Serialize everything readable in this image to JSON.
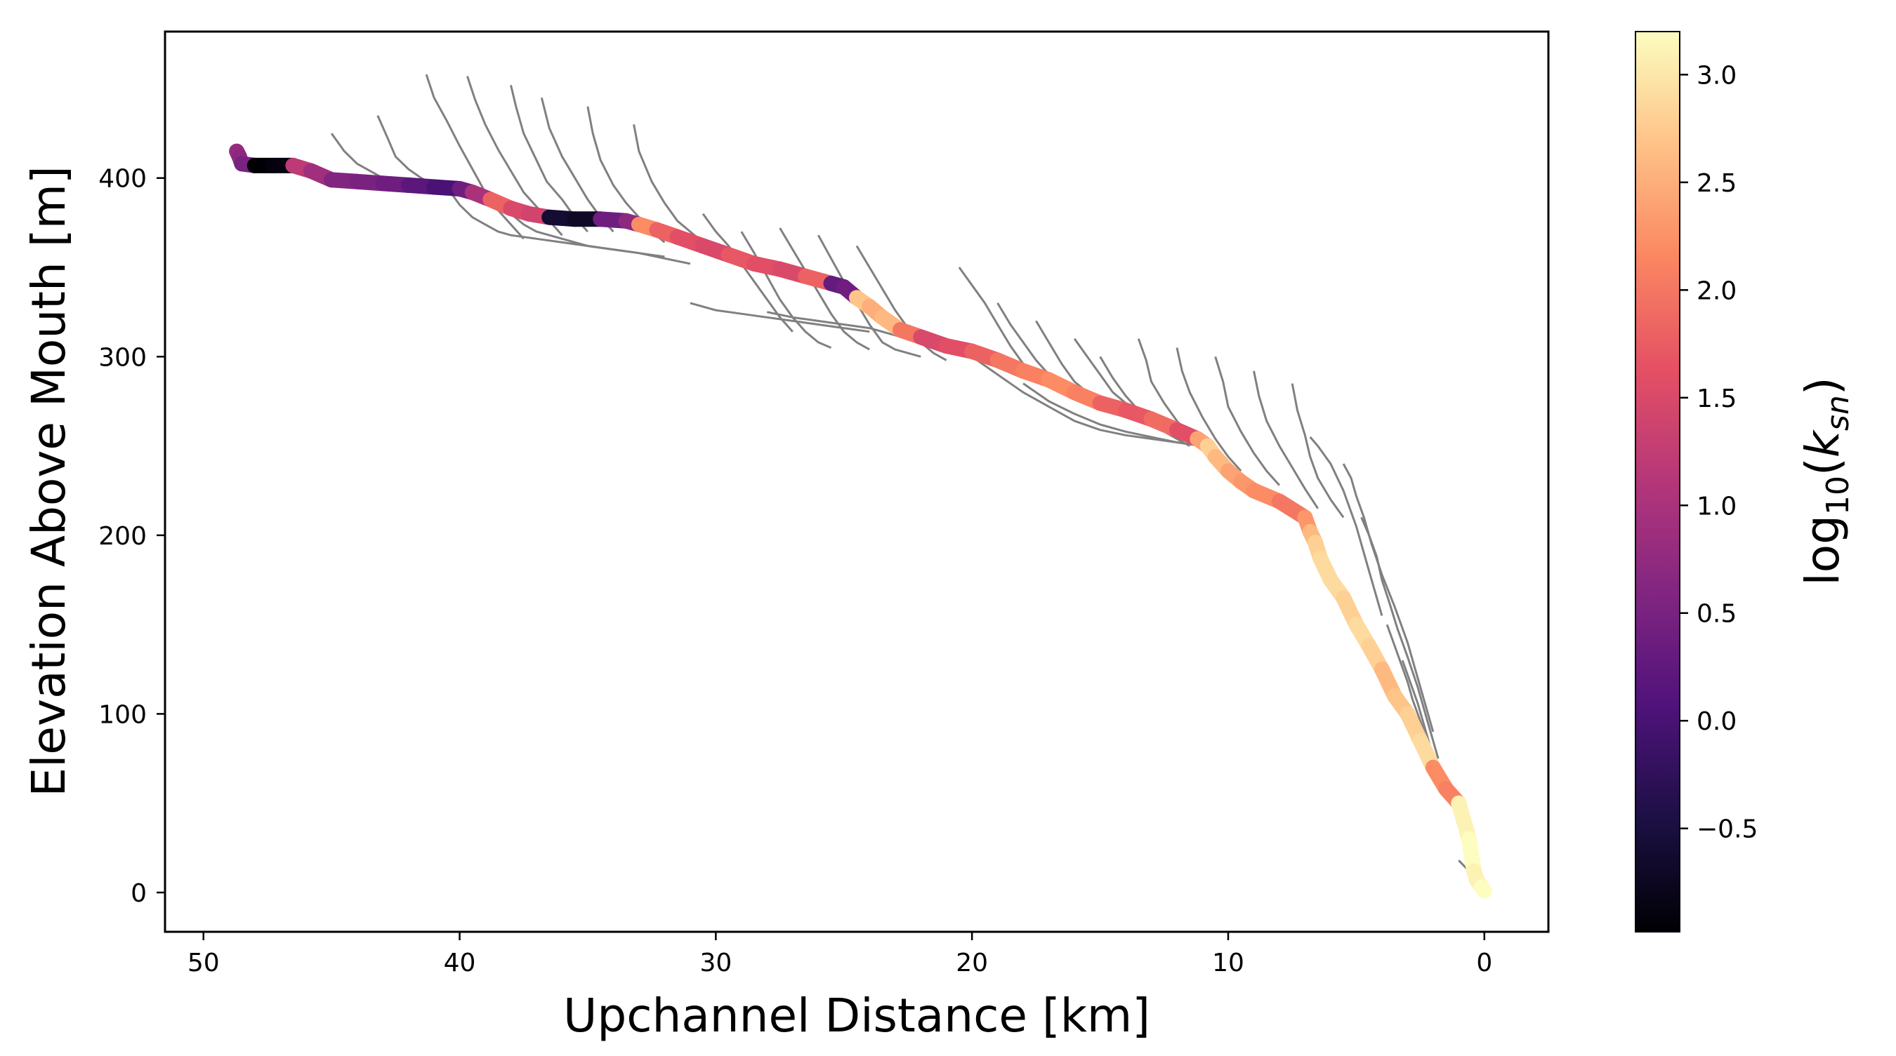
{
  "chart_data": {
    "type": "line",
    "xlabel": "Upchannel Distance [km]",
    "ylabel": "Elevation Above Mouth [m]",
    "x_axis_inverted": true,
    "xlim": [
      51.5,
      -2.5
    ],
    "ylim": [
      -22,
      482
    ],
    "xticks": [
      50,
      40,
      30,
      20,
      10,
      0
    ],
    "yticks": [
      0,
      100,
      200,
      300,
      400
    ],
    "xtick_labels": [
      "50",
      "40",
      "30",
      "20",
      "10",
      "0"
    ],
    "ytick_labels": [
      "0",
      "100",
      "200",
      "300",
      "400"
    ],
    "grid": false,
    "colorbar": {
      "label": "log10(ksn)",
      "label_base": "log",
      "label_sub1": "10",
      "label_var": "k",
      "label_sub2": "sn",
      "colormap": "magma",
      "range": [
        -0.98,
        3.2
      ],
      "ticks": [
        -0.5,
        0.0,
        0.5,
        1.0,
        1.5,
        2.0,
        2.5,
        3.0
      ],
      "tick_labels": [
        "−0.5",
        "0.0",
        "0.5",
        "1.0",
        "1.5",
        "2.0",
        "2.5",
        "3.0"
      ]
    },
    "colors": {
      "tributaries": "#808080",
      "axes": "#000000"
    },
    "series": [
      {
        "role": "main-stem",
        "x": [
          48.7,
          48.6,
          48.5,
          48.0,
          47.3,
          46.5,
          45.8,
          45.0,
          44.0,
          43.0,
          42.0,
          41.0,
          40.0,
          39.5,
          38.8,
          38.0,
          37.3,
          36.5,
          35.5,
          34.5,
          33.5,
          33.0,
          32.3,
          31.5,
          30.5,
          29.5,
          28.5,
          27.5,
          26.5,
          25.5,
          25.0,
          24.5,
          24.0,
          23.5,
          22.8,
          22.0,
          21.0,
          20.0,
          19.0,
          18.0,
          17.0,
          16.0,
          15.0,
          14.0,
          13.0,
          12.0,
          11.2,
          10.8,
          10.5,
          10.0,
          9.5,
          9.0,
          8.0,
          7.0,
          6.8,
          6.6,
          6.4,
          6.0,
          5.5,
          5.0,
          4.5,
          4.0,
          3.5,
          3.0,
          2.5,
          2.0,
          1.5,
          1.0,
          0.8,
          0.6,
          0.5,
          0.4,
          0.3,
          0.1,
          0.0
        ],
        "y": [
          415,
          412,
          408,
          407,
          407,
          407,
          404,
          399,
          398,
          397,
          396,
          395,
          394,
          392,
          388,
          383,
          380,
          378,
          377,
          377,
          376,
          374,
          371,
          367,
          362,
          357,
          352,
          349,
          345,
          341,
          339,
          333,
          328,
          322,
          315,
          311,
          306,
          303,
          298,
          292,
          287,
          280,
          274,
          270,
          265,
          259,
          254,
          250,
          244,
          236,
          230,
          225,
          219,
          210,
          202,
          196,
          187,
          175,
          165,
          150,
          138,
          125,
          110,
          100,
          85,
          70,
          58,
          50,
          40,
          30,
          20,
          12,
          7,
          3,
          1
        ],
        "ksn": [
          0.8,
          0.7,
          0.5,
          -1.0,
          -0.9,
          1.2,
          0.9,
          0.6,
          0.5,
          0.4,
          0.2,
          0.0,
          0.4,
          1.0,
          1.8,
          1.5,
          1.4,
          -0.6,
          -0.7,
          0.4,
          0.7,
          2.2,
          1.8,
          1.6,
          1.5,
          1.7,
          1.6,
          1.5,
          1.8,
          0.3,
          0.4,
          2.7,
          2.5,
          2.6,
          2.0,
          1.5,
          1.6,
          1.8,
          2.0,
          2.1,
          2.2,
          2.1,
          1.8,
          1.7,
          1.9,
          1.6,
          2.4,
          2.8,
          2.6,
          2.4,
          2.3,
          2.2,
          2.0,
          2.3,
          2.6,
          2.8,
          2.9,
          2.9,
          2.8,
          2.9,
          2.8,
          2.6,
          2.7,
          2.8,
          2.9,
          2.2,
          2.1,
          3.1,
          3.1,
          3.2,
          3.2,
          3.1,
          3.1,
          3.2,
          3.2
        ]
      },
      {
        "role": "tributary",
        "x": [
          41.3,
          41.0,
          40.5,
          40.0,
          39.5,
          39.0,
          38.5,
          38.0,
          37.5
        ],
        "y": [
          458,
          445,
          432,
          418,
          405,
          392,
          382,
          374,
          366
        ]
      },
      {
        "role": "tributary",
        "x": [
          39.7,
          39.4,
          39.0,
          38.5,
          38.0,
          37.5,
          37.0,
          36.5,
          36.0
        ],
        "y": [
          457,
          444,
          430,
          416,
          404,
          392,
          384,
          376,
          368
        ]
      },
      {
        "role": "tributary",
        "x": [
          38.0,
          37.8,
          37.5,
          37.0,
          36.6,
          36.0,
          35.5,
          35.0
        ],
        "y": [
          452,
          440,
          425,
          410,
          398,
          388,
          378,
          370
        ]
      },
      {
        "role": "tributary",
        "x": [
          36.8,
          36.5,
          36.0,
          35.5,
          35.0,
          34.5,
          34.0
        ],
        "y": [
          445,
          428,
          412,
          400,
          388,
          378,
          370
        ]
      },
      {
        "role": "tributary",
        "x": [
          35.0,
          34.8,
          34.5,
          34.0,
          33.5,
          33.0,
          32.5,
          32.0
        ],
        "y": [
          440,
          425,
          410,
          396,
          386,
          378,
          370,
          364
        ]
      },
      {
        "role": "tributary",
        "x": [
          33.2,
          33.0,
          32.5,
          32.0,
          31.5,
          31.0,
          30.5,
          30.0
        ],
        "y": [
          430,
          415,
          398,
          386,
          376,
          370,
          364,
          358
        ]
      },
      {
        "role": "tributary",
        "x": [
          43.2,
          42.8,
          42.5,
          42.0,
          41.5,
          41.0,
          40.5,
          40.0
        ],
        "y": [
          435,
          422,
          412,
          405,
          400,
          396,
          392,
          390
        ]
      },
      {
        "role": "tributary",
        "x": [
          45.0,
          44.5,
          44.0,
          43.5,
          43.0,
          42.5,
          42.0
        ],
        "y": [
          425,
          415,
          408,
          404,
          400,
          398,
          396
        ]
      },
      {
        "role": "tributary",
        "x": [
          40.5,
          40.0,
          39.5,
          39.0,
          38.5,
          38.0,
          37.0,
          36.0,
          35.0,
          34.0,
          33.0,
          32.0
        ],
        "y": [
          395,
          385,
          378,
          374,
          370,
          368,
          366,
          364,
          362,
          360,
          358,
          356
        ]
      },
      {
        "role": "tributary",
        "x": [
          38.5,
          38.0,
          37.5,
          37.0,
          36.0,
          35.0,
          34.0,
          33.0,
          32.0,
          31.0
        ],
        "y": [
          390,
          380,
          374,
          370,
          366,
          362,
          360,
          358,
          355,
          352
        ]
      },
      {
        "role": "tributary",
        "x": [
          30.5,
          30.0,
          29.5,
          29.0,
          28.5,
          28.0,
          27.5,
          27.0
        ],
        "y": [
          380,
          370,
          362,
          352,
          342,
          332,
          322,
          314
        ]
      },
      {
        "role": "tributary",
        "x": [
          29.0,
          28.5,
          28.0,
          27.5,
          27.0,
          26.5,
          26.0,
          25.5
        ],
        "y": [
          370,
          358,
          345,
          332,
          322,
          314,
          308,
          305
        ]
      },
      {
        "role": "tributary",
        "x": [
          27.5,
          27.0,
          26.5,
          26.0,
          25.5,
          25.0,
          24.5,
          24.0
        ],
        "y": [
          372,
          360,
          348,
          336,
          324,
          314,
          308,
          304
        ]
      },
      {
        "role": "tributary",
        "x": [
          26.0,
          25.5,
          25.0,
          24.5,
          24.0,
          23.5,
          23.0,
          22.0
        ],
        "y": [
          368,
          355,
          342,
          330,
          318,
          308,
          304,
          300
        ]
      },
      {
        "role": "tributary",
        "x": [
          24.5,
          24.0,
          23.5,
          23.0,
          22.5,
          22.0,
          21.5,
          21.0
        ],
        "y": [
          362,
          350,
          338,
          326,
          316,
          308,
          302,
          298
        ]
      },
      {
        "role": "tributary",
        "x": [
          31.0,
          30.0,
          29.0,
          28.0,
          27.0,
          26.0,
          25.0,
          24.0
        ],
        "y": [
          330,
          326,
          324,
          322,
          320,
          318,
          316,
          314
        ]
      },
      {
        "role": "tributary",
        "x": [
          28.0,
          27.0,
          26.0,
          25.0,
          24.0,
          23.0,
          22.0,
          21.0
        ],
        "y": [
          325,
          322,
          320,
          318,
          316,
          312,
          308,
          305
        ]
      },
      {
        "role": "tributary",
        "x": [
          20.5,
          20.0,
          19.5,
          19.0,
          18.5,
          18.0,
          17.5,
          17.0,
          16.5
        ],
        "y": [
          350,
          340,
          330,
          318,
          306,
          296,
          290,
          286,
          282
        ]
      },
      {
        "role": "tributary",
        "x": [
          19.0,
          18.5,
          18.0,
          17.5,
          17.0,
          16.5,
          16.0
        ],
        "y": [
          330,
          318,
          308,
          298,
          290,
          284,
          280
        ]
      },
      {
        "role": "tributary",
        "x": [
          17.5,
          17.0,
          16.5,
          16.0,
          15.5,
          15.0
        ],
        "y": [
          320,
          308,
          296,
          286,
          280,
          276
        ]
      },
      {
        "role": "tributary",
        "x": [
          16.0,
          15.5,
          15.0,
          14.5,
          14.0,
          13.5
        ],
        "y": [
          310,
          300,
          290,
          280,
          274,
          270
        ]
      },
      {
        "role": "tributary",
        "x": [
          20.0,
          19.0,
          18.0,
          17.0,
          16.0,
          15.0,
          14.0,
          13.0,
          12.0,
          11.0,
          10.5
        ],
        "y": [
          300,
          290,
          280,
          272,
          264,
          259,
          256,
          254,
          252,
          250,
          248
        ]
      },
      {
        "role": "tributary",
        "x": [
          18.0,
          17.0,
          16.0,
          15.0,
          14.0,
          13.0,
          12.0,
          11.0
        ],
        "y": [
          285,
          275,
          268,
          262,
          258,
          255,
          252,
          250
        ]
      },
      {
        "role": "tributary",
        "x": [
          15.0,
          14.5,
          14.0,
          13.5,
          13.0,
          12.5,
          12.0,
          11.5
        ],
        "y": [
          300,
          288,
          278,
          270,
          264,
          258,
          254,
          250
        ]
      },
      {
        "role": "tributary",
        "x": [
          13.5,
          13.2,
          13.0,
          12.5,
          12.0,
          11.5,
          11.0
        ],
        "y": [
          310,
          298,
          286,
          274,
          264,
          256,
          250
        ]
      },
      {
        "role": "tributary",
        "x": [
          12.0,
          11.8,
          11.5,
          11.0,
          10.5,
          10.0,
          9.5
        ],
        "y": [
          305,
          292,
          280,
          266,
          254,
          244,
          236
        ]
      },
      {
        "role": "tributary",
        "x": [
          10.5,
          10.2,
          10.0,
          9.5,
          9.0,
          8.5,
          8.0
        ],
        "y": [
          300,
          286,
          272,
          258,
          246,
          236,
          228
        ]
      },
      {
        "role": "tributary",
        "x": [
          9.0,
          8.8,
          8.5,
          8.0,
          7.5,
          7.0,
          6.5
        ],
        "y": [
          292,
          278,
          264,
          250,
          238,
          226,
          215
        ]
      },
      {
        "role": "tributary",
        "x": [
          7.5,
          7.3,
          7.0,
          6.8,
          6.5,
          6.0,
          5.5
        ],
        "y": [
          285,
          270,
          256,
          244,
          232,
          220,
          210
        ]
      },
      {
        "role": "tributary",
        "x": [
          6.8,
          6.5,
          6.0,
          5.5,
          5.0,
          4.5,
          4.0
        ],
        "y": [
          255,
          250,
          240,
          225,
          205,
          180,
          155
        ]
      },
      {
        "role": "tributary",
        "x": [
          5.5,
          5.2,
          5.0,
          4.7,
          4.4,
          4.0,
          3.5,
          3.0,
          2.5,
          2.0
        ],
        "y": [
          240,
          232,
          222,
          210,
          195,
          178,
          160,
          140,
          115,
          90
        ]
      },
      {
        "role": "tributary",
        "x": [
          4.8,
          4.5,
          4.2,
          4.0,
          3.7,
          3.4,
          3.0,
          2.6,
          2.2,
          1.8
        ],
        "y": [
          210,
          200,
          188,
          175,
          162,
          148,
          132,
          115,
          95,
          75
        ]
      },
      {
        "role": "tributary",
        "x": [
          3.8,
          3.6,
          3.4,
          3.2,
          3.0,
          2.8,
          2.5,
          2.2,
          1.9,
          1.6
        ],
        "y": [
          150,
          142,
          134,
          126,
          118,
          108,
          96,
          84,
          72,
          60
        ]
      },
      {
        "role": "tributary",
        "x": [
          3.2,
          3.0,
          2.8,
          2.6,
          2.4,
          2.2,
          2.0,
          1.7,
          1.4
        ],
        "y": [
          130,
          122,
          114,
          106,
          96,
          86,
          76,
          66,
          56
        ]
      },
      {
        "role": "tributary",
        "x": [
          1.0,
          0.8,
          0.6,
          0.4
        ],
        "y": [
          18,
          15,
          12,
          10
        ]
      }
    ]
  }
}
